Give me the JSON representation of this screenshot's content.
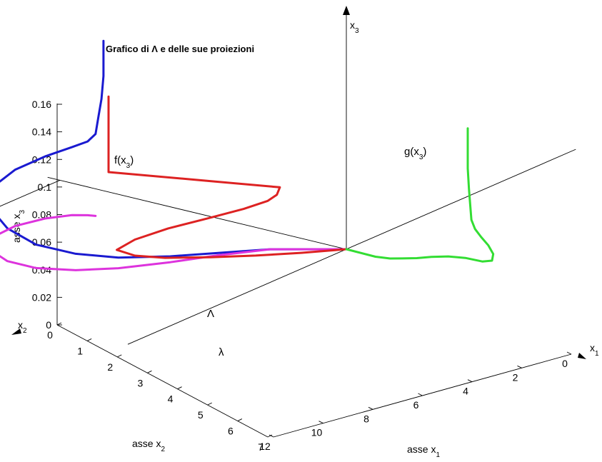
{
  "chart_data": {
    "type": "line",
    "title": "Grafico di Λ e delle sue proiezioni",
    "axes": {
      "x1": {
        "label_main": "asse x",
        "label_sub": "1",
        "arrow_main": "x",
        "arrow_sub": "1",
        "range": [
          0,
          12
        ],
        "ticks": [
          "0",
          "2",
          "4",
          "6",
          "8",
          "10",
          "12"
        ]
      },
      "x2": {
        "label_main": "asse x",
        "label_sub": "2",
        "arrow_main": "x",
        "arrow_sub": "2",
        "range": [
          0,
          7
        ],
        "ticks": [
          "0",
          "1",
          "2",
          "3",
          "4",
          "5",
          "6",
          "7"
        ]
      },
      "x3": {
        "label_main": "asse x",
        "label_sub": "3",
        "arrow_main": "x",
        "arrow_sub": "3",
        "range": [
          0,
          0.16
        ],
        "ticks": [
          "0",
          "0.02",
          "0.04",
          "0.06",
          "0.08",
          "0.1",
          "0.12",
          "0.14",
          "0.16"
        ]
      }
    },
    "series": [
      {
        "name": "Λ",
        "label_main": "Λ",
        "label_sub": "",
        "color": "#1a1ad0",
        "points": [
          [
            0.0,
            0.0,
            0.0
          ],
          [
            1.5,
            1.2,
            0.0
          ],
          [
            3.0,
            1.8,
            0.002
          ],
          [
            4.5,
            2.3,
            0.005
          ],
          [
            6.0,
            2.9,
            0.009
          ],
          [
            7.0,
            3.5,
            0.014
          ],
          [
            7.6,
            4.2,
            0.02
          ],
          [
            7.6,
            4.9,
            0.028
          ],
          [
            7.0,
            5.6,
            0.036
          ],
          [
            5.9,
            6.0,
            0.043
          ],
          [
            4.6,
            6.05,
            0.048
          ],
          [
            3.4,
            5.85,
            0.053
          ],
          [
            2.6,
            5.55,
            0.058
          ],
          [
            2.3,
            5.3,
            0.063
          ],
          [
            2.2,
            5.15,
            0.07
          ],
          [
            2.15,
            5.1,
            0.085
          ],
          [
            2.1,
            5.05,
            0.1
          ],
          [
            2.1,
            5.0,
            0.12
          ],
          [
            2.1,
            5.0,
            0.14
          ],
          [
            2.1,
            5.0,
            0.15
          ]
        ]
      },
      {
        "name": "λ",
        "label_main": "λ",
        "label_sub": "",
        "color": "#dd33dd",
        "points": [
          [
            0.0,
            0.0,
            0
          ],
          [
            1.5,
            1.2,
            0
          ],
          [
            3.0,
            1.8,
            0
          ],
          [
            4.5,
            2.3,
            0
          ],
          [
            6.0,
            2.9,
            0
          ],
          [
            7.0,
            3.5,
            0
          ],
          [
            7.6,
            4.2,
            0
          ],
          [
            7.6,
            4.9,
            0
          ],
          [
            7.0,
            5.6,
            0
          ],
          [
            5.9,
            6.0,
            0
          ],
          [
            4.6,
            6.05,
            0
          ],
          [
            3.4,
            5.85,
            0
          ],
          [
            2.6,
            5.55,
            0
          ],
          [
            2.3,
            5.3,
            0
          ],
          [
            2.2,
            5.15,
            0
          ]
        ]
      },
      {
        "name": "f(x3)",
        "label_main": "f(x",
        "label_sub": "3",
        "label_end": ")",
        "color": "#dd2222",
        "points": [
          [
            0.0,
            0,
            0.0
          ],
          [
            1.5,
            0,
            0.002
          ],
          [
            3.0,
            0,
            0.005
          ],
          [
            4.5,
            0,
            0.009
          ],
          [
            6.0,
            0,
            0.014
          ],
          [
            7.0,
            0,
            0.02
          ],
          [
            7.6,
            0,
            0.028
          ],
          [
            7.0,
            0,
            0.036
          ],
          [
            5.9,
            0,
            0.043
          ],
          [
            4.6,
            0,
            0.048
          ],
          [
            3.4,
            0,
            0.053
          ],
          [
            2.6,
            0,
            0.058
          ],
          [
            2.3,
            0,
            0.063
          ],
          [
            2.2,
            0,
            0.07
          ],
          [
            2.15,
            0,
            0.085
          ],
          [
            2.1,
            0,
            0.1
          ],
          [
            2.1,
            0,
            0.12
          ],
          [
            2.1,
            0,
            0.14
          ],
          [
            2.1,
            0,
            0.16
          ]
        ]
      },
      {
        "name": "g(x3)",
        "label_main": "g(x",
        "label_sub": "3",
        "label_end": ")",
        "color": "#33dd33",
        "points": [
          [
            0,
            0.0,
            0.0
          ],
          [
            0,
            1.2,
            0.002
          ],
          [
            0,
            1.8,
            0.005
          ],
          [
            0,
            2.3,
            0.009
          ],
          [
            0,
            2.9,
            0.014
          ],
          [
            0,
            3.5,
            0.02
          ],
          [
            0,
            4.2,
            0.026
          ],
          [
            0,
            4.9,
            0.03
          ],
          [
            0,
            5.6,
            0.032
          ],
          [
            0,
            6.0,
            0.036
          ],
          [
            0,
            6.05,
            0.043
          ],
          [
            0,
            5.85,
            0.05
          ],
          [
            0,
            5.55,
            0.056
          ],
          [
            0,
            5.3,
            0.062
          ],
          [
            0,
            5.15,
            0.07
          ],
          [
            0,
            5.1,
            0.085
          ],
          [
            0,
            5.05,
            0.1
          ],
          [
            0,
            5.0,
            0.12
          ],
          [
            0,
            5.0,
            0.14
          ],
          [
            0,
            5.0,
            0.16
          ]
        ]
      }
    ]
  }
}
